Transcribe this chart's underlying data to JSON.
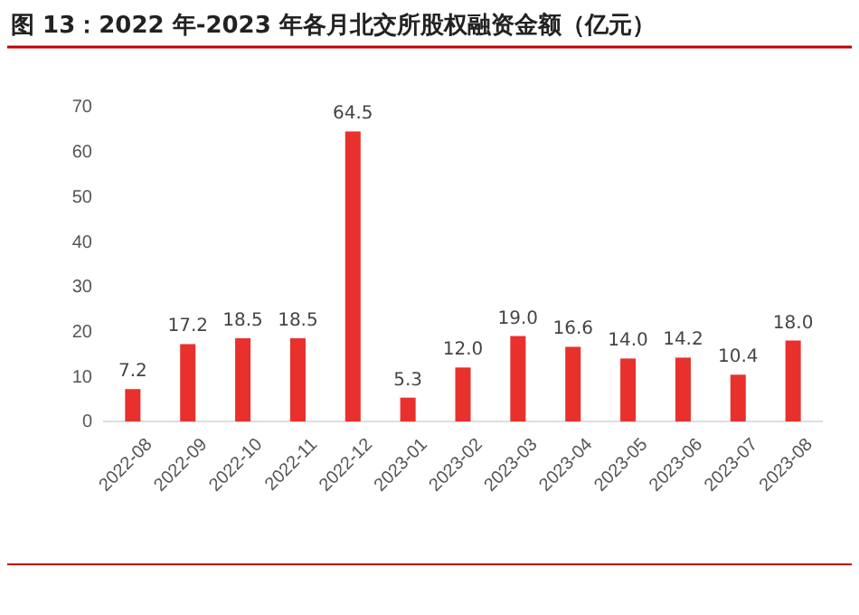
{
  "chart_data": {
    "type": "bar",
    "title": "图 13：2022 年-2023 年各月北交所股权融资金额（亿元）",
    "categories": [
      "2022-08",
      "2022-09",
      "2022-10",
      "2022-11",
      "2022-12",
      "2023-01",
      "2023-02",
      "2023-03",
      "2023-04",
      "2023-05",
      "2023-06",
      "2023-07",
      "2023-08"
    ],
    "values": [
      7.2,
      17.2,
      18.5,
      18.5,
      64.5,
      5.3,
      12.0,
      19.0,
      16.6,
      14.0,
      14.2,
      10.4,
      18.0
    ],
    "value_labels": [
      "7.2",
      "17.2",
      "18.5",
      "18.5",
      "64.5",
      "5.3",
      "12.0",
      "19.0",
      "16.6",
      "14.0",
      "14.2",
      "10.4",
      "18.0"
    ],
    "color": "#e8312c",
    "ylim": [
      0,
      70
    ],
    "yticks": [
      0,
      10,
      20,
      30,
      40,
      50,
      60,
      70
    ]
  }
}
